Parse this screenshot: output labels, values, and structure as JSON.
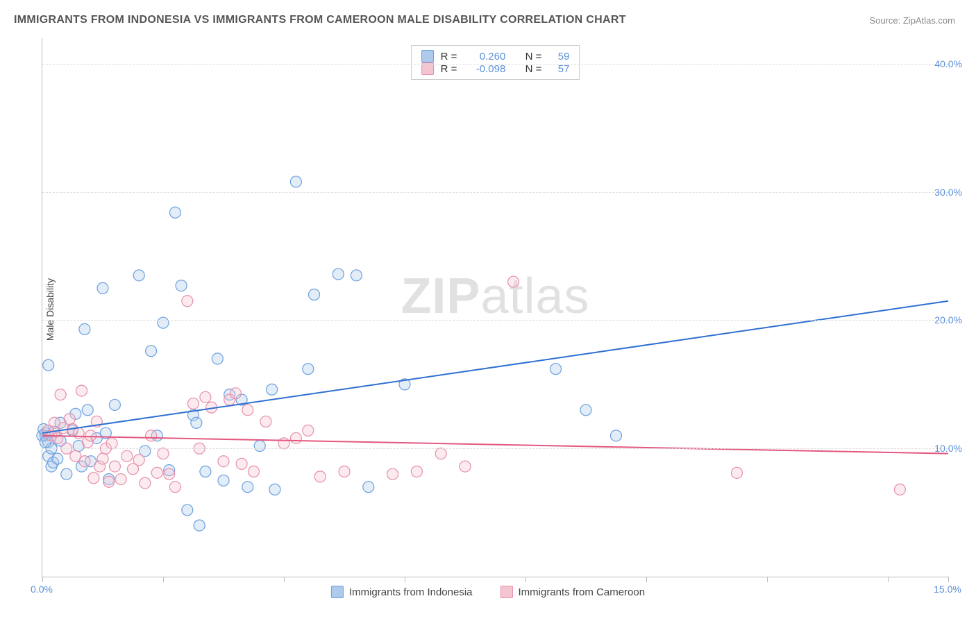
{
  "title": "IMMIGRANTS FROM INDONESIA VS IMMIGRANTS FROM CAMEROON MALE DISABILITY CORRELATION CHART",
  "source_label": "Source:",
  "source_value": "ZipAtlas.com",
  "y_axis_title": "Male Disability",
  "watermark": {
    "bold": "ZIP",
    "rest": "atlas"
  },
  "chart": {
    "type": "scatter",
    "background_color": "#ffffff",
    "grid_color": "#dddddd",
    "axis_color": "#bbbbbb",
    "tick_label_color": "#5b8fd9",
    "tick_fontsize": 14,
    "title_fontsize": 16,
    "xlim": [
      0,
      15
    ],
    "ylim": [
      0,
      42
    ],
    "x_ticks": [
      0,
      2,
      4,
      6,
      8,
      10,
      12,
      14,
      15
    ],
    "x_tick_labels": {
      "0": "0.0%",
      "15": "15.0%"
    },
    "y_ticks": [
      10,
      20,
      30,
      40
    ],
    "y_tick_labels": {
      "10": "10.0%",
      "20": "20.0%",
      "30": "30.0%",
      "40": "40.0%"
    },
    "marker_radius": 8,
    "marker_stroke_width": 1.2,
    "marker_fill_opacity": 0.35,
    "trend_line_width": 2
  },
  "series": [
    {
      "key": "indonesia",
      "label": "Immigrants from Indonesia",
      "color_fill": "#aecbeb",
      "color_stroke": "#6a9fde",
      "trend_color": "#2e6fd1",
      "R": "0.260",
      "N": "59",
      "trend": {
        "x1": 0,
        "y1": 11.2,
        "x2": 15,
        "y2": 21.5
      },
      "points": [
        [
          0.05,
          11.2
        ],
        [
          0.05,
          11.0
        ],
        [
          0.1,
          16.5
        ],
        [
          0.1,
          10.5
        ],
        [
          0.1,
          9.4
        ],
        [
          0.15,
          10.0
        ],
        [
          0.15,
          8.6
        ],
        [
          0.18,
          8.9
        ],
        [
          0.2,
          11.3
        ],
        [
          0.25,
          9.2
        ],
        [
          0.3,
          10.6
        ],
        [
          0.3,
          12.0
        ],
        [
          0.4,
          8.0
        ],
        [
          0.5,
          11.4
        ],
        [
          0.55,
          12.7
        ],
        [
          0.6,
          10.2
        ],
        [
          0.65,
          8.6
        ],
        [
          0.7,
          19.3
        ],
        [
          0.75,
          13.0
        ],
        [
          0.8,
          9.0
        ],
        [
          0.9,
          10.8
        ],
        [
          1.0,
          22.5
        ],
        [
          1.05,
          11.2
        ],
        [
          1.1,
          7.6
        ],
        [
          1.2,
          13.4
        ],
        [
          1.6,
          23.5
        ],
        [
          1.7,
          9.8
        ],
        [
          1.8,
          17.6
        ],
        [
          1.9,
          11.0
        ],
        [
          2.0,
          19.8
        ],
        [
          2.1,
          8.3
        ],
        [
          2.2,
          28.4
        ],
        [
          2.3,
          22.7
        ],
        [
          2.4,
          5.2
        ],
        [
          2.5,
          12.6
        ],
        [
          2.55,
          12.0
        ],
        [
          2.6,
          4.0
        ],
        [
          2.7,
          8.2
        ],
        [
          2.9,
          17.0
        ],
        [
          3.0,
          7.5
        ],
        [
          3.1,
          14.2
        ],
        [
          3.3,
          13.8
        ],
        [
          3.4,
          7.0
        ],
        [
          3.6,
          10.2
        ],
        [
          3.8,
          14.6
        ],
        [
          3.85,
          6.8
        ],
        [
          4.2,
          30.8
        ],
        [
          4.4,
          16.2
        ],
        [
          4.5,
          22.0
        ],
        [
          4.9,
          23.6
        ],
        [
          5.2,
          23.5
        ],
        [
          5.4,
          7.0
        ],
        [
          6.0,
          15.0
        ],
        [
          8.5,
          16.2
        ],
        [
          9.0,
          13.0
        ],
        [
          9.5,
          11.0
        ],
        [
          0.0,
          11.0
        ],
        [
          0.05,
          10.5
        ],
        [
          0.02,
          11.5
        ]
      ]
    },
    {
      "key": "cameroon",
      "label": "Immigrants from Cameroon",
      "color_fill": "#f4c5d1",
      "color_stroke": "#e78fab",
      "trend_color": "#e4577f",
      "R": "-0.098",
      "N": "57",
      "trend": {
        "x1": 0,
        "y1": 11.0,
        "x2": 15,
        "y2": 9.6
      },
      "points": [
        [
          0.1,
          11.4
        ],
        [
          0.15,
          11.0
        ],
        [
          0.2,
          12.0
        ],
        [
          0.25,
          10.8
        ],
        [
          0.3,
          14.2
        ],
        [
          0.35,
          11.6
        ],
        [
          0.4,
          10.0
        ],
        [
          0.45,
          12.3
        ],
        [
          0.5,
          11.5
        ],
        [
          0.55,
          9.4
        ],
        [
          0.6,
          11.2
        ],
        [
          0.65,
          14.5
        ],
        [
          0.7,
          9.0
        ],
        [
          0.75,
          10.5
        ],
        [
          0.8,
          11.0
        ],
        [
          0.85,
          7.7
        ],
        [
          0.9,
          12.1
        ],
        [
          0.95,
          8.6
        ],
        [
          1.0,
          9.2
        ],
        [
          1.05,
          10.0
        ],
        [
          1.1,
          7.4
        ],
        [
          1.15,
          10.4
        ],
        [
          1.2,
          8.6
        ],
        [
          1.3,
          7.6
        ],
        [
          1.4,
          9.4
        ],
        [
          1.5,
          8.4
        ],
        [
          1.6,
          9.1
        ],
        [
          1.7,
          7.3
        ],
        [
          1.8,
          11.0
        ],
        [
          1.9,
          8.1
        ],
        [
          2.0,
          9.6
        ],
        [
          2.1,
          8.0
        ],
        [
          2.2,
          7.0
        ],
        [
          2.4,
          21.5
        ],
        [
          2.5,
          13.5
        ],
        [
          2.6,
          10.0
        ],
        [
          2.7,
          14.0
        ],
        [
          2.8,
          13.2
        ],
        [
          3.0,
          9.0
        ],
        [
          3.1,
          13.8
        ],
        [
          3.2,
          14.3
        ],
        [
          3.3,
          8.8
        ],
        [
          3.5,
          8.2
        ],
        [
          3.7,
          12.1
        ],
        [
          4.0,
          10.4
        ],
        [
          4.2,
          10.8
        ],
        [
          4.4,
          11.4
        ],
        [
          4.6,
          7.8
        ],
        [
          5.0,
          8.2
        ],
        [
          5.8,
          8.0
        ],
        [
          6.2,
          8.2
        ],
        [
          6.6,
          9.6
        ],
        [
          7.0,
          8.6
        ],
        [
          7.8,
          23.0
        ],
        [
          11.5,
          8.1
        ],
        [
          14.2,
          6.8
        ],
        [
          3.4,
          13.0
        ]
      ]
    }
  ],
  "legend_top_labels": {
    "R": "R =",
    "N": "N ="
  },
  "legend_bottom": [
    {
      "series": "indonesia"
    },
    {
      "series": "cameroon"
    }
  ]
}
